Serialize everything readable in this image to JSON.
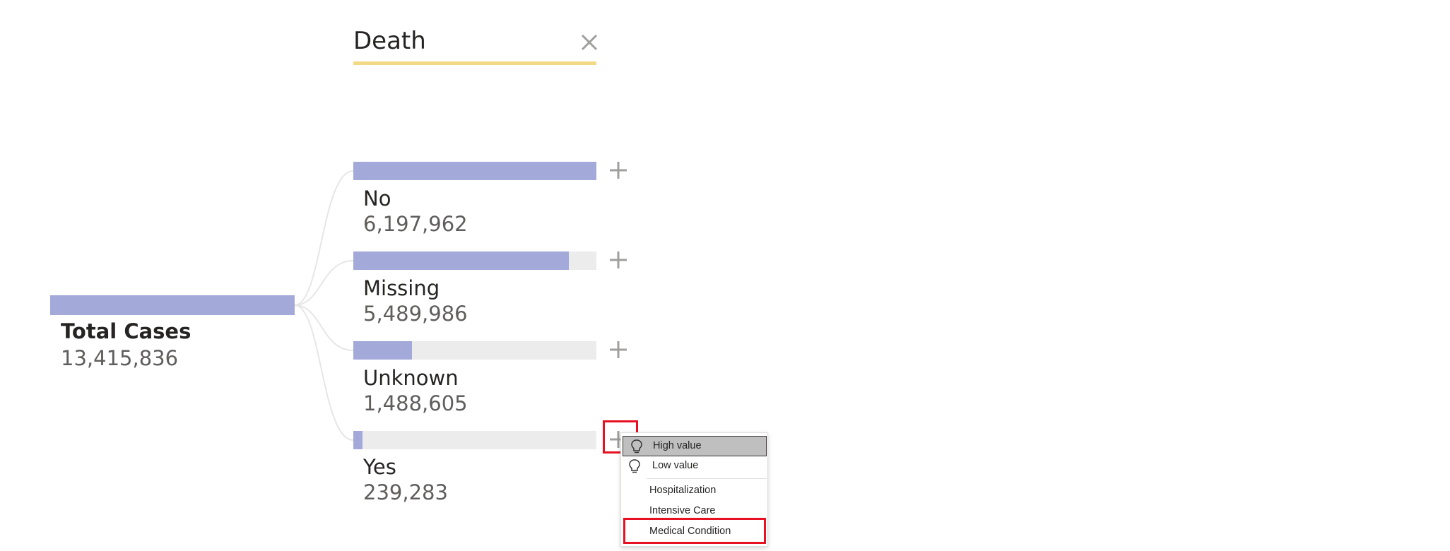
{
  "header": {
    "level_title": "Death",
    "close_icon": "close-icon"
  },
  "root": {
    "label": "Total Cases",
    "value": "13,415,836",
    "value_num": 13415836
  },
  "nodes": [
    {
      "label": "No",
      "value": "6,197,962",
      "value_num": 6197962,
      "fill_fraction": 1.0
    },
    {
      "label": "Missing",
      "value": "5,489,986",
      "value_num": 5489986,
      "fill_fraction": 0.886
    },
    {
      "label": "Unknown",
      "value": "1,488,605",
      "value_num": 1488605,
      "fill_fraction": 0.24
    },
    {
      "label": "Yes",
      "value": "239,283",
      "value_num": 239283,
      "fill_fraction": 0.039
    }
  ],
  "menu": {
    "ai_splits": [
      {
        "label": "High value",
        "icon": "lightbulb-icon",
        "selected": true
      },
      {
        "label": "Low value",
        "icon": "lightbulb-icon",
        "selected": false
      }
    ],
    "fields": [
      {
        "label": "Hospitalization"
      },
      {
        "label": "Intensive Care"
      },
      {
        "label": "Medical Condition"
      }
    ]
  },
  "colors": {
    "bar_fill": "#a3a9d9",
    "bar_track": "#ececec",
    "header_underline": "#f2d984",
    "highlight_outline": "#e81123",
    "connector": "#e6e6e6"
  }
}
